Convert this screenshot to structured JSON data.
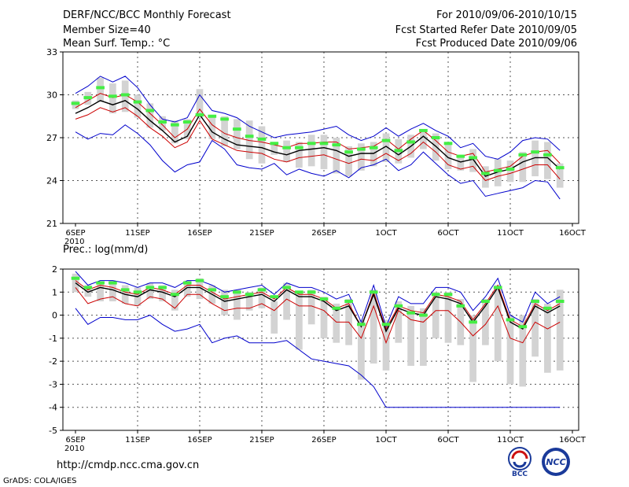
{
  "header": {
    "title": "DERF/NCC/BCC Monthly Forecast",
    "member_size": "Member Size=40",
    "variable": "Mean Surf. Temp.: °C",
    "period": "For 2010/09/06-2010/10/15",
    "started": "Fcst Started Refer Date 2010/09/05",
    "produced": "Fcst Produced Date 2010/09/06"
  },
  "footer": {
    "url": "http://cmdp.ncc.cma.gov.cn",
    "credit": "GrADS: COLA/IGES",
    "logo1_text": "BCC",
    "logo2_text": "NCC"
  },
  "colors": {
    "spread": "#0000cc",
    "std": "#cc0000",
    "mean": "#000000",
    "box": "#d3d3d3",
    "median": "#44ee44"
  },
  "chart_data": [
    {
      "type": "line",
      "title": "Mean Surf. Temp.: °C",
      "ylim": [
        21,
        33
      ],
      "yticks": [
        21,
        24,
        27,
        30,
        33
      ],
      "xticks": [
        {
          "day": 0,
          "label": "6SEP",
          "sub": "2010"
        },
        {
          "day": 5,
          "label": "11SEP",
          "sub": ""
        },
        {
          "day": 10,
          "label": "16SEP",
          "sub": ""
        },
        {
          "day": 15,
          "label": "21SEP",
          "sub": ""
        },
        {
          "day": 20,
          "label": "26SEP",
          "sub": ""
        },
        {
          "day": 25,
          "label": "1OCT",
          "sub": ""
        },
        {
          "day": 30,
          "label": "6OCT",
          "sub": ""
        },
        {
          "day": 35,
          "label": "11OCT",
          "sub": ""
        },
        {
          "day": 40,
          "label": "16OCT",
          "sub": ""
        }
      ],
      "grid": true,
      "series": [
        {
          "name": "max",
          "values": [
            30.1,
            30.6,
            31.3,
            30.9,
            31.3,
            30.5,
            29.3,
            28.3,
            28.1,
            28.4,
            30.0,
            28.9,
            28.7,
            28.4,
            27.8,
            27.4,
            27.0,
            27.2,
            27.3,
            27.4,
            27.6,
            27.8,
            27.2,
            26.8,
            27.1,
            27.7,
            27.1,
            27.6,
            28.0,
            27.5,
            27.1,
            26.3,
            26.6,
            25.7,
            25.5,
            26.0,
            26.8,
            27.0,
            26.9,
            26.1
          ]
        },
        {
          "name": "upper",
          "values": [
            29.1,
            29.6,
            30.1,
            29.8,
            30.0,
            29.5,
            28.7,
            27.9,
            27.0,
            27.6,
            29.0,
            27.9,
            27.3,
            27.0,
            26.8,
            26.7,
            26.5,
            26.3,
            26.6,
            26.6,
            26.7,
            26.7,
            26.2,
            26.3,
            26.4,
            26.9,
            26.2,
            26.9,
            27.5,
            26.8,
            26.0,
            25.7,
            25.9,
            24.6,
            24.8,
            25.0,
            25.7,
            26.0,
            26.1,
            25.2
          ]
        },
        {
          "name": "mean",
          "values": [
            28.7,
            29.1,
            29.6,
            29.3,
            29.6,
            29.0,
            28.2,
            27.5,
            26.7,
            27.1,
            28.6,
            27.4,
            26.9,
            26.5,
            26.4,
            26.3,
            26.0,
            25.8,
            26.1,
            26.2,
            26.3,
            26.1,
            25.7,
            25.9,
            25.9,
            26.4,
            25.8,
            26.4,
            27.1,
            26.4,
            25.6,
            25.3,
            25.5,
            24.3,
            24.6,
            24.8,
            25.3,
            25.6,
            25.6,
            24.8
          ]
        },
        {
          "name": "lower",
          "values": [
            28.3,
            28.6,
            29.1,
            28.8,
            29.1,
            28.5,
            27.7,
            27.1,
            26.3,
            26.7,
            28.2,
            26.9,
            26.5,
            26.1,
            26.0,
            25.9,
            25.5,
            25.3,
            25.6,
            25.7,
            25.8,
            25.5,
            25.2,
            25.5,
            25.4,
            25.9,
            25.4,
            25.9,
            26.7,
            26.0,
            25.1,
            24.8,
            25.0,
            24.0,
            24.3,
            24.5,
            24.8,
            25.1,
            25.1,
            24.1
          ]
        },
        {
          "name": "min",
          "values": [
            27.4,
            26.9,
            27.3,
            27.2,
            27.9,
            27.3,
            26.5,
            25.4,
            24.6,
            25.1,
            25.3,
            26.8,
            26.2,
            25.1,
            24.9,
            24.8,
            25.2,
            24.4,
            24.8,
            24.5,
            24.3,
            24.7,
            24.2,
            24.9,
            25.1,
            25.5,
            24.7,
            25.1,
            26.0,
            25.2,
            24.4,
            23.8,
            24.0,
            22.9,
            23.1,
            23.3,
            23.5,
            24.0,
            23.9,
            22.7
          ]
        }
      ],
      "boxes": [
        {
          "lo": 29.0,
          "hi": 29.6
        },
        {
          "lo": 29.3,
          "hi": 30.2
        },
        {
          "lo": 29.5,
          "hi": 31.2
        },
        {
          "lo": 28.7,
          "hi": 30.8
        },
        {
          "lo": 28.8,
          "hi": 31.0
        },
        {
          "lo": 28.4,
          "hi": 30.0
        },
        {
          "lo": 27.7,
          "hi": 29.4
        },
        {
          "lo": 27.5,
          "hi": 28.5
        },
        {
          "lo": 26.6,
          "hi": 28.2
        },
        {
          "lo": 26.9,
          "hi": 28.3
        },
        {
          "lo": 28.4,
          "hi": 30.4
        },
        {
          "lo": 26.9,
          "hi": 28.6
        },
        {
          "lo": 26.4,
          "hi": 28.5
        },
        {
          "lo": 26.2,
          "hi": 28.3
        },
        {
          "lo": 25.5,
          "hi": 28.2
        },
        {
          "lo": 25.2,
          "hi": 27.8
        },
        {
          "lo": 25.8,
          "hi": 26.7
        },
        {
          "lo": 25.3,
          "hi": 26.8
        },
        {
          "lo": 24.9,
          "hi": 26.7
        },
        {
          "lo": 25.0,
          "hi": 27.2
        },
        {
          "lo": 24.8,
          "hi": 27.2
        },
        {
          "lo": 24.5,
          "hi": 27.0
        },
        {
          "lo": 24.3,
          "hi": 26.4
        },
        {
          "lo": 24.7,
          "hi": 26.6
        },
        {
          "lo": 25.0,
          "hi": 26.7
        },
        {
          "lo": 25.3,
          "hi": 27.3
        },
        {
          "lo": 25.2,
          "hi": 26.9
        },
        {
          "lo": 25.6,
          "hi": 27.2
        },
        {
          "lo": 26.2,
          "hi": 27.6
        },
        {
          "lo": 25.4,
          "hi": 27.3
        },
        {
          "lo": 24.8,
          "hi": 26.6
        },
        {
          "lo": 24.7,
          "hi": 25.7
        },
        {
          "lo": 24.6,
          "hi": 26.2
        },
        {
          "lo": 23.5,
          "hi": 25.0
        },
        {
          "lo": 23.6,
          "hi": 25.5
        },
        {
          "lo": 23.9,
          "hi": 25.4
        },
        {
          "lo": 23.9,
          "hi": 26.0
        },
        {
          "lo": 24.3,
          "hi": 26.8
        },
        {
          "lo": 24.1,
          "hi": 26.7
        },
        {
          "lo": 23.5,
          "hi": 25.2
        }
      ],
      "medians": [
        29.4,
        29.8,
        30.5,
        29.9,
        30.0,
        29.5,
        28.9,
        28.1,
        27.9,
        28.1,
        28.6,
        28.5,
        28.3,
        27.6,
        27.1,
        26.9,
        26.6,
        26.3,
        26.3,
        26.6,
        26.6,
        26.5,
        26.0,
        26.2,
        26.3,
        26.8,
        26.1,
        26.7,
        27.5,
        27.0,
        26.6,
        25.7,
        25.6,
        24.5,
        24.7,
        24.8,
        25.8,
        26.0,
        25.8,
        24.9
      ]
    },
    {
      "type": "line",
      "title": "Prec.: log(mm/d)",
      "ylim": [
        -5,
        2
      ],
      "yticks": [
        -5,
        -4,
        -3,
        -2,
        -1,
        0,
        1,
        2
      ],
      "xticks": [
        {
          "day": 0,
          "label": "6SEP",
          "sub": "2010"
        },
        {
          "day": 5,
          "label": "11SEP",
          "sub": ""
        },
        {
          "day": 10,
          "label": "16SEP",
          "sub": ""
        },
        {
          "day": 15,
          "label": "21SEP",
          "sub": ""
        },
        {
          "day": 20,
          "label": "26SEP",
          "sub": ""
        },
        {
          "day": 25,
          "label": "1OCT",
          "sub": ""
        },
        {
          "day": 30,
          "label": "6OCT",
          "sub": ""
        },
        {
          "day": 35,
          "label": "11OCT",
          "sub": ""
        },
        {
          "day": 40,
          "label": "16OCT",
          "sub": ""
        }
      ],
      "grid": true,
      "series": [
        {
          "name": "max",
          "values": [
            1.9,
            1.3,
            1.5,
            1.5,
            1.4,
            1.2,
            1.4,
            1.4,
            1.2,
            1.5,
            1.5,
            1.3,
            1.0,
            1.1,
            1.2,
            1.3,
            0.9,
            1.4,
            1.2,
            1.2,
            1.0,
            0.7,
            0.9,
            -0.3,
            1.3,
            -0.5,
            0.8,
            0.5,
            0.5,
            1.2,
            1.2,
            1.0,
            0.2,
            0.8,
            1.6,
            0.0,
            -0.3,
            1.0,
            0.5,
            0.8
          ]
        },
        {
          "name": "upper",
          "values": [
            1.5,
            1.1,
            1.3,
            1.2,
            1.0,
            0.9,
            1.2,
            1.1,
            0.9,
            1.3,
            1.3,
            1.0,
            0.7,
            0.8,
            0.9,
            1.0,
            0.7,
            1.2,
            0.9,
            0.9,
            0.7,
            0.3,
            0.5,
            -0.5,
            1.0,
            -0.6,
            0.4,
            0.2,
            0.1,
            0.9,
            0.8,
            0.6,
            -0.2,
            0.5,
            1.3,
            -0.2,
            -0.5,
            0.5,
            0.2,
            0.5
          ]
        },
        {
          "name": "mean",
          "values": [
            1.4,
            1.0,
            1.2,
            1.1,
            0.9,
            0.8,
            1.1,
            1.0,
            0.8,
            1.2,
            1.2,
            0.9,
            0.6,
            0.7,
            0.8,
            0.9,
            0.6,
            1.1,
            0.8,
            0.8,
            0.6,
            0.2,
            0.4,
            -0.5,
            0.9,
            -0.7,
            0.3,
            0.1,
            0.0,
            0.8,
            0.7,
            0.5,
            -0.3,
            0.4,
            1.2,
            -0.3,
            -0.6,
            0.4,
            0.1,
            0.4
          ]
        },
        {
          "name": "lower",
          "values": [
            1.2,
            0.5,
            0.7,
            0.8,
            0.5,
            0.4,
            0.8,
            0.7,
            0.3,
            0.9,
            0.9,
            0.5,
            0.2,
            0.3,
            0.3,
            0.5,
            0.2,
            0.7,
            0.4,
            0.4,
            0.2,
            -0.3,
            -0.3,
            -1.0,
            0.4,
            -1.2,
            0.2,
            -0.2,
            -0.3,
            0.2,
            0.2,
            -0.3,
            -0.9,
            -0.4,
            0.4,
            -1.0,
            -1.2,
            -0.3,
            -0.6,
            -0.3
          ]
        },
        {
          "name": "min",
          "values": [
            0.3,
            -0.4,
            -0.1,
            -0.1,
            -0.2,
            -0.2,
            0.0,
            -0.4,
            -0.7,
            -0.6,
            -0.4,
            -1.2,
            -1.0,
            -0.9,
            -1.2,
            -1.2,
            -1.2,
            -1.1,
            -1.5,
            -1.9,
            -2.0,
            -2.1,
            -2.2,
            -2.6,
            -3.1,
            -4.0,
            -4.0,
            -4.0,
            -4.0,
            -4.0,
            -4.0,
            -4.0,
            -4.0,
            -4.0,
            -4.0,
            -4.0,
            -4.0,
            -4.0,
            -4.0,
            -4.0
          ]
        }
      ],
      "boxes": [
        {
          "lo": 1.0,
          "hi": 1.8
        },
        {
          "lo": 0.8,
          "hi": 1.3
        },
        {
          "lo": 0.6,
          "hi": 1.4
        },
        {
          "lo": 0.6,
          "hi": 1.5
        },
        {
          "lo": 0.5,
          "hi": 1.3
        },
        {
          "lo": 0.4,
          "hi": 1.2
        },
        {
          "lo": 0.7,
          "hi": 1.4
        },
        {
          "lo": 0.6,
          "hi": 1.3
        },
        {
          "lo": 0.2,
          "hi": 1.1
        },
        {
          "lo": 0.8,
          "hi": 1.5
        },
        {
          "lo": 0.7,
          "hi": 1.6
        },
        {
          "lo": 0.5,
          "hi": 1.3
        },
        {
          "lo": 0.0,
          "hi": 1.1
        },
        {
          "lo": -0.2,
          "hi": 1.1
        },
        {
          "lo": 0.2,
          "hi": 1.0
        },
        {
          "lo": 0.3,
          "hi": 1.2
        },
        {
          "lo": -0.8,
          "hi": 0.6
        },
        {
          "lo": -0.2,
          "hi": 1.4
        },
        {
          "lo": -1.5,
          "hi": 1.0
        },
        {
          "lo": -0.4,
          "hi": 1.1
        },
        {
          "lo": -1.0,
          "hi": 0.8
        },
        {
          "lo": -1.2,
          "hi": 0.5
        },
        {
          "lo": -1.3,
          "hi": 0.7
        },
        {
          "lo": -2.8,
          "hi": -0.2
        },
        {
          "lo": -2.1,
          "hi": 1.1
        },
        {
          "lo": -2.4,
          "hi": -0.2
        },
        {
          "lo": -1.2,
          "hi": 0.6
        },
        {
          "lo": -2.2,
          "hi": 0.4
        },
        {
          "lo": -2.2,
          "hi": 0.3
        },
        {
          "lo": -1.0,
          "hi": 1.0
        },
        {
          "lo": -1.2,
          "hi": 1.0
        },
        {
          "lo": -1.3,
          "hi": 0.7
        },
        {
          "lo": -2.9,
          "hi": 0.0
        },
        {
          "lo": -1.3,
          "hi": 0.7
        },
        {
          "lo": -2.0,
          "hi": 1.3
        },
        {
          "lo": -3.0,
          "hi": 0.0
        },
        {
          "lo": -3.1,
          "hi": 0.0
        },
        {
          "lo": -1.8,
          "hi": 0.7
        },
        {
          "lo": -2.5,
          "hi": 0.5
        },
        {
          "lo": -2.4,
          "hi": 1.1
        }
      ],
      "medians": [
        1.6,
        1.2,
        1.4,
        1.4,
        1.1,
        1.0,
        1.2,
        1.2,
        0.9,
        1.4,
        1.5,
        1.1,
        0.8,
        1.0,
        0.9,
        1.1,
        0.8,
        1.2,
        1.0,
        1.0,
        0.7,
        0.3,
        0.6,
        -0.4,
        1.0,
        -0.4,
        0.4,
        0.1,
        0.0,
        0.9,
        0.9,
        0.4,
        -0.3,
        0.6,
        1.2,
        -0.2,
        -0.5,
        0.6,
        0.3,
        0.6
      ]
    }
  ]
}
